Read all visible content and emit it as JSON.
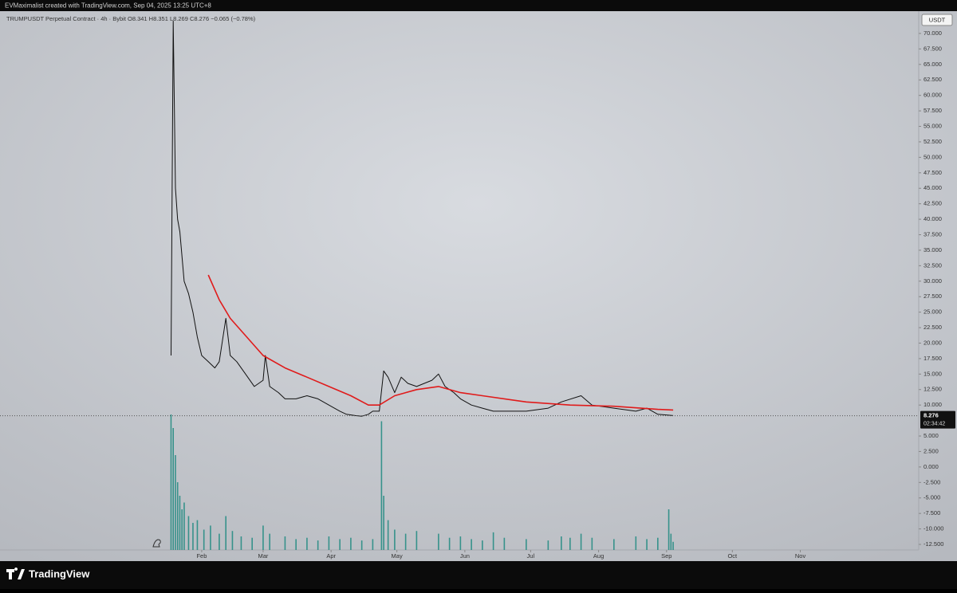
{
  "header": {
    "attribution": "EVMaximalist created with TradingView.com, Sep 04, 2025 13:25 UTC+8",
    "brand": "TradingView"
  },
  "chart_data": {
    "type": "line",
    "title": "TRUMPUSDT Perpetual Contract · 4h · Bybit  O8.341  H8.351  L8.269  C8.276  −0.065 (−0.78%)",
    "unit": "USDT",
    "last_price": 8.276,
    "countdown": "02:34:42",
    "xlim": [
      -60,
      359
    ],
    "xticks": [
      {
        "value": 32,
        "label": "Feb"
      },
      {
        "value": 60,
        "label": "Mar"
      },
      {
        "value": 91,
        "label": "Apr"
      },
      {
        "value": 121,
        "label": "May"
      },
      {
        "value": 152,
        "label": "Jun"
      },
      {
        "value": 182,
        "label": "Jul"
      },
      {
        "value": 213,
        "label": "Aug"
      },
      {
        "value": 244,
        "label": "Sep"
      },
      {
        "value": 274,
        "label": "Oct"
      },
      {
        "value": 305,
        "label": "Nov"
      }
    ],
    "ylim": [
      -13.4,
      73.6
    ],
    "yticks": [
      {
        "value": 70,
        "label": "70.000"
      },
      {
        "value": 67.5,
        "label": "67.500"
      },
      {
        "value": 65,
        "label": "65.000"
      },
      {
        "value": 62.5,
        "label": "62.500"
      },
      {
        "value": 60,
        "label": "60.000"
      },
      {
        "value": 57.5,
        "label": "57.500"
      },
      {
        "value": 55,
        "label": "55.000"
      },
      {
        "value": 52.5,
        "label": "52.500"
      },
      {
        "value": 50,
        "label": "50.000"
      },
      {
        "value": 47.5,
        "label": "47.500"
      },
      {
        "value": 45,
        "label": "45.000"
      },
      {
        "value": 42.5,
        "label": "42.500"
      },
      {
        "value": 40,
        "label": "40.000"
      },
      {
        "value": 37.5,
        "label": "37.500"
      },
      {
        "value": 35,
        "label": "35.000"
      },
      {
        "value": 32.5,
        "label": "32.500"
      },
      {
        "value": 30,
        "label": "30.000"
      },
      {
        "value": 27.5,
        "label": "27.500"
      },
      {
        "value": 25,
        "label": "25.000"
      },
      {
        "value": 22.5,
        "label": "22.500"
      },
      {
        "value": 20,
        "label": "20.000"
      },
      {
        "value": 17.5,
        "label": "17.500"
      },
      {
        "value": 15,
        "label": "15.000"
      },
      {
        "value": 12.5,
        "label": "12.500"
      },
      {
        "value": 10,
        "label": "10.000"
      },
      {
        "value": 5,
        "label": "5.000"
      },
      {
        "value": 2.5,
        "label": "2.500"
      },
      {
        "value": 0,
        "label": "0.000"
      },
      {
        "value": -2.5,
        "label": "-2.500"
      },
      {
        "value": -5,
        "label": "-5.000"
      },
      {
        "value": -7.5,
        "label": "-7.500"
      },
      {
        "value": -10,
        "label": "-10.000"
      },
      {
        "value": -12.5,
        "label": "-12.500"
      }
    ],
    "price": {
      "color": "#111111",
      "x": [
        18,
        19,
        20,
        21,
        22,
        24,
        26,
        28,
        30,
        32,
        35,
        38,
        40,
        43,
        45,
        48,
        52,
        56,
        60,
        61,
        63,
        67,
        70,
        75,
        80,
        85,
        90,
        95,
        98,
        102,
        105,
        108,
        110,
        113,
        115,
        117,
        120,
        123,
        126,
        130,
        137,
        140,
        143,
        147,
        150,
        155,
        160,
        165,
        170,
        180,
        190,
        196,
        205,
        210,
        220,
        230,
        235,
        240,
        247
      ],
      "values": [
        18,
        72,
        45,
        40,
        38,
        30,
        28,
        25,
        21,
        18,
        17,
        16,
        17,
        24,
        18,
        17,
        15,
        13,
        14,
        18,
        13,
        12,
        11,
        11,
        11.5,
        11,
        10,
        9,
        8.5,
        8.3,
        8.2,
        8.5,
        9,
        9,
        15.5,
        14.5,
        12,
        14.5,
        13.5,
        13,
        14,
        15,
        13,
        12,
        11,
        10,
        9.5,
        9,
        9,
        9,
        9.5,
        10.5,
        11.5,
        10,
        9.5,
        9,
        9.5,
        8.5,
        8.3
      ]
    },
    "ma": {
      "color": "#e01b1b",
      "x": [
        35,
        40,
        45,
        50,
        55,
        60,
        70,
        80,
        90,
        100,
        108,
        113,
        120,
        130,
        140,
        150,
        160,
        180,
        200,
        220,
        240,
        247
      ],
      "values": [
        31,
        27,
        24,
        22,
        20,
        18,
        16,
        14.5,
        13,
        11.5,
        10,
        10,
        11.5,
        12.5,
        13,
        12,
        11.5,
        10.5,
        10,
        9.8,
        9.3,
        9.2
      ]
    },
    "volume": {
      "color": "#1f8a80",
      "y2lim": [
        0,
        100
      ],
      "x": [
        18,
        19,
        20,
        21,
        22,
        23,
        24,
        26,
        28,
        30,
        33,
        36,
        40,
        43,
        46,
        50,
        55,
        60,
        63,
        70,
        75,
        80,
        85,
        90,
        95,
        100,
        105,
        110,
        114,
        115,
        117,
        120,
        125,
        130,
        140,
        145,
        150,
        155,
        160,
        165,
        170,
        180,
        190,
        196,
        200,
        205,
        210,
        220,
        230,
        235,
        240,
        245,
        246,
        247
      ],
      "values": [
        100,
        90,
        70,
        50,
        40,
        30,
        35,
        25,
        20,
        22,
        15,
        18,
        12,
        25,
        14,
        10,
        9,
        18,
        12,
        10,
        8,
        9,
        7,
        10,
        8,
        9,
        7,
        8,
        95,
        40,
        22,
        15,
        12,
        14,
        12,
        9,
        10,
        8,
        7,
        13,
        9,
        8,
        7,
        10,
        9,
        12,
        9,
        8,
        10,
        8,
        9,
        30,
        12,
        6
      ]
    }
  }
}
